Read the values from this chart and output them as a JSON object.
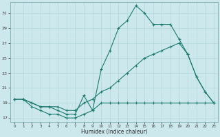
{
  "xlabel": "Humidex (Indice chaleur)",
  "bg_color": "#cce8ec",
  "line_color": "#1a7a6e",
  "grid_color": "#b0d8dc",
  "xlim": [
    -0.5,
    23.5
  ],
  "ylim": [
    16.5,
    32.5
  ],
  "yticks": [
    17,
    19,
    21,
    23,
    25,
    27,
    29,
    31
  ],
  "xticks": [
    0,
    1,
    2,
    3,
    4,
    5,
    6,
    7,
    8,
    9,
    10,
    11,
    12,
    13,
    14,
    15,
    16,
    17,
    18,
    19,
    20,
    21,
    22,
    23
  ],
  "line_bottom_x": [
    0,
    1,
    2,
    3,
    4,
    5,
    6,
    7,
    8,
    9,
    10,
    11,
    12,
    13,
    14,
    15,
    16,
    17,
    18,
    19,
    20,
    21,
    22,
    23
  ],
  "line_bottom_y": [
    19.5,
    19.5,
    18.5,
    18.0,
    17.5,
    17.5,
    17.0,
    17.0,
    17.5,
    18.0,
    19.0,
    19.0,
    19.0,
    19.0,
    19.0,
    19.0,
    19.0,
    19.0,
    19.0,
    19.0,
    19.0,
    19.0,
    19.0,
    19.0
  ],
  "line_mid_x": [
    0,
    1,
    2,
    3,
    4,
    5,
    6,
    7,
    8,
    9,
    10,
    11,
    12,
    13,
    14,
    15,
    16,
    17,
    18,
    19,
    20,
    21,
    22,
    23
  ],
  "line_mid_y": [
    19.5,
    19.5,
    19.0,
    18.5,
    18.5,
    18.5,
    18.0,
    18.0,
    19.0,
    19.5,
    20.5,
    21.0,
    22.0,
    23.0,
    24.0,
    25.0,
    25.5,
    26.0,
    26.5,
    27.0,
    25.5,
    22.5,
    20.5,
    19.0
  ],
  "line_top_x": [
    0,
    1,
    2,
    3,
    4,
    5,
    6,
    7,
    8,
    9,
    10,
    11,
    12,
    13,
    14,
    15,
    16,
    17,
    18,
    19,
    20,
    21,
    22,
    23
  ],
  "line_top_y": [
    19.5,
    19.5,
    19.0,
    18.5,
    18.5,
    18.0,
    17.5,
    17.5,
    20.0,
    18.0,
    23.5,
    26.0,
    29.0,
    30.0,
    32.0,
    31.0,
    29.5,
    29.5,
    29.5,
    27.5,
    25.5,
    22.5,
    20.5,
    19.0
  ]
}
